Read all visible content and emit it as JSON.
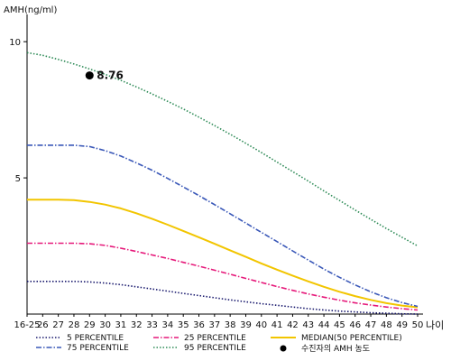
{
  "chart_data": {
    "type": "line",
    "ylabel": "AMH(ng/ml)",
    "xlabel": "나이",
    "x": [
      "16-25",
      "26",
      "27",
      "28",
      "29",
      "30",
      "31",
      "32",
      "33",
      "34",
      "35",
      "36",
      "37",
      "38",
      "39",
      "40",
      "41",
      "42",
      "43",
      "44",
      "45",
      "46",
      "47",
      "48",
      "49",
      "50"
    ],
    "ylim": [
      0,
      11
    ],
    "yticks": [
      5,
      10
    ],
    "grid": false,
    "legend_position": "bottom",
    "series": [
      {
        "name": "5 PERCENTILE",
        "color": "#1a1a6e",
        "dash": "dotted",
        "values": [
          1.2,
          1.2,
          1.2,
          1.2,
          1.18,
          1.14,
          1.08,
          1.0,
          0.92,
          0.84,
          0.76,
          0.68,
          0.6,
          0.52,
          0.45,
          0.38,
          0.32,
          0.26,
          0.2,
          0.15,
          0.11,
          0.08,
          0.05,
          0.03,
          0.01,
          0.0
        ]
      },
      {
        "name": "25 PERCENTILE",
        "color": "#e6197a",
        "dash": "dashdot",
        "values": [
          2.6,
          2.6,
          2.6,
          2.6,
          2.58,
          2.52,
          2.42,
          2.3,
          2.17,
          2.04,
          1.9,
          1.76,
          1.61,
          1.46,
          1.31,
          1.16,
          1.01,
          0.87,
          0.74,
          0.62,
          0.51,
          0.41,
          0.33,
          0.26,
          0.2,
          0.15
        ]
      },
      {
        "name": "MEDIAN(50 PERCENTILE)",
        "color": "#f2c500",
        "dash": "solid",
        "values": [
          4.2,
          4.2,
          4.2,
          4.18,
          4.12,
          4.02,
          3.88,
          3.7,
          3.5,
          3.28,
          3.05,
          2.82,
          2.58,
          2.34,
          2.1,
          1.86,
          1.63,
          1.41,
          1.2,
          1.0,
          0.82,
          0.66,
          0.52,
          0.4,
          0.31,
          0.25
        ]
      },
      {
        "name": "75 PERCENTILE",
        "color": "#3a58b8",
        "dash": "dashdot",
        "values": [
          6.2,
          6.2,
          6.2,
          6.2,
          6.15,
          6.0,
          5.8,
          5.55,
          5.28,
          4.98,
          4.67,
          4.35,
          4.02,
          3.68,
          3.34,
          3.0,
          2.66,
          2.32,
          1.98,
          1.65,
          1.35,
          1.07,
          0.82,
          0.6,
          0.42,
          0.28
        ]
      },
      {
        "name": "95 PERCENTILE",
        "color": "#2e8b57",
        "dash": "dotted",
        "values": [
          9.6,
          9.5,
          9.35,
          9.18,
          9.0,
          8.8,
          8.58,
          8.34,
          8.08,
          7.81,
          7.53,
          7.23,
          6.92,
          6.6,
          6.27,
          5.93,
          5.58,
          5.23,
          4.88,
          4.52,
          4.17,
          3.82,
          3.48,
          3.14,
          2.82,
          2.5
        ]
      }
    ],
    "marker": {
      "label": "수진자의 AMH 농도",
      "x": "29",
      "y": 8.76,
      "text": "8.76",
      "color": "#000000"
    }
  }
}
